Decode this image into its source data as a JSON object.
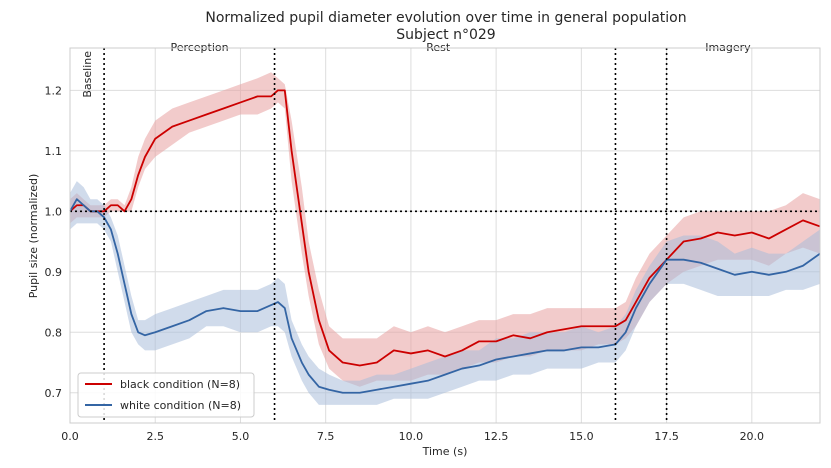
{
  "chart_data": {
    "type": "line",
    "title": "Normalized pupil diameter evolution over time in general population",
    "subtitle": "Subject n°029",
    "xlabel": "Time (s)",
    "ylabel": "Pupil size (normalized)",
    "xlim": [
      0,
      22
    ],
    "ylim": [
      0.65,
      1.27
    ],
    "x_ticks": [
      0,
      2.5,
      5,
      7.5,
      10,
      12.5,
      15,
      17.5,
      20
    ],
    "x_tick_labels": [
      "0.0",
      "2.5",
      "5.0",
      "7.5",
      "10.0",
      "12.5",
      "15.0",
      "17.5",
      "20.0"
    ],
    "y_ticks": [
      0.7,
      0.8,
      0.9,
      1.0,
      1.1,
      1.2
    ],
    "y_tick_labels": [
      "0.7",
      "0.8",
      "0.9",
      "1.0",
      "1.1",
      "1.2"
    ],
    "grid": true,
    "legend_position": "bottom-left",
    "reference_line_y": 1.0,
    "phase_boundaries_x": [
      1,
      6,
      16,
      17.5
    ],
    "phase_labels": [
      {
        "label": "Baseline",
        "x": 0.7,
        "rotated": true
      },
      {
        "label": "Perception",
        "x": 3.8,
        "rotated": false
      },
      {
        "label": "Rest",
        "x": 10.8,
        "rotated": false
      },
      {
        "label": "Imagery",
        "x": 19.3,
        "rotated": false
      }
    ],
    "series": [
      {
        "name": "black condition (N=8)",
        "color": "#cc0000",
        "band_color": "#e8a0a0",
        "x": [
          0,
          0.2,
          0.4,
          0.6,
          0.8,
          1.0,
          1.2,
          1.4,
          1.6,
          1.8,
          2.0,
          2.2,
          2.5,
          3.0,
          3.5,
          4.0,
          4.5,
          5.0,
          5.5,
          5.9,
          6.1,
          6.3,
          6.5,
          6.8,
          7.0,
          7.3,
          7.6,
          8.0,
          8.5,
          9.0,
          9.5,
          10.0,
          10.5,
          11.0,
          11.5,
          12.0,
          12.5,
          13.0,
          13.5,
          14.0,
          14.5,
          15.0,
          15.5,
          16.0,
          16.3,
          16.6,
          17.0,
          17.5,
          18.0,
          18.5,
          19.0,
          19.5,
          20.0,
          20.5,
          21.0,
          21.5,
          22.0
        ],
        "values": [
          1.0,
          1.01,
          1.01,
          1.0,
          1.0,
          1.0,
          1.01,
          1.01,
          1.0,
          1.02,
          1.06,
          1.09,
          1.12,
          1.14,
          1.15,
          1.16,
          1.17,
          1.18,
          1.19,
          1.19,
          1.2,
          1.2,
          1.1,
          0.98,
          0.9,
          0.82,
          0.77,
          0.75,
          0.745,
          0.75,
          0.77,
          0.765,
          0.77,
          0.76,
          0.77,
          0.785,
          0.785,
          0.795,
          0.79,
          0.8,
          0.805,
          0.81,
          0.81,
          0.81,
          0.82,
          0.85,
          0.89,
          0.92,
          0.95,
          0.955,
          0.965,
          0.96,
          0.965,
          0.955,
          0.97,
          0.985,
          0.975
        ],
        "lower": [
          0.98,
          0.99,
          0.99,
          0.99,
          0.99,
          0.99,
          1.0,
          1.0,
          1.0,
          1.0,
          1.04,
          1.07,
          1.09,
          1.11,
          1.13,
          1.14,
          1.15,
          1.16,
          1.16,
          1.17,
          1.18,
          1.17,
          1.05,
          0.93,
          0.86,
          0.78,
          0.74,
          0.72,
          0.71,
          0.72,
          0.72,
          0.72,
          0.73,
          0.73,
          0.74,
          0.75,
          0.75,
          0.76,
          0.76,
          0.77,
          0.77,
          0.77,
          0.78,
          0.78,
          0.79,
          0.81,
          0.85,
          0.88,
          0.9,
          0.91,
          0.92,
          0.92,
          0.92,
          0.91,
          0.93,
          0.94,
          0.93
        ],
        "upper": [
          1.02,
          1.03,
          1.02,
          1.01,
          1.01,
          1.01,
          1.02,
          1.02,
          1.01,
          1.04,
          1.09,
          1.12,
          1.15,
          1.17,
          1.18,
          1.19,
          1.2,
          1.21,
          1.22,
          1.23,
          1.22,
          1.21,
          1.15,
          1.04,
          0.95,
          0.87,
          0.81,
          0.79,
          0.79,
          0.79,
          0.81,
          0.8,
          0.81,
          0.8,
          0.81,
          0.82,
          0.82,
          0.83,
          0.83,
          0.84,
          0.84,
          0.84,
          0.84,
          0.84,
          0.85,
          0.89,
          0.93,
          0.96,
          0.99,
          1.0,
          1.0,
          1.0,
          1.0,
          1.0,
          1.01,
          1.03,
          1.02
        ]
      },
      {
        "name": "white condition (N=8)",
        "color": "#3465a4",
        "band_color": "#a9bedb",
        "x": [
          0,
          0.2,
          0.4,
          0.6,
          0.8,
          1.0,
          1.2,
          1.4,
          1.6,
          1.8,
          2.0,
          2.2,
          2.5,
          3.0,
          3.5,
          4.0,
          4.5,
          5.0,
          5.5,
          5.9,
          6.1,
          6.3,
          6.5,
          6.8,
          7.0,
          7.3,
          7.6,
          8.0,
          8.5,
          9.0,
          9.5,
          10.0,
          10.5,
          11.0,
          11.5,
          12.0,
          12.5,
          13.0,
          13.5,
          14.0,
          14.5,
          15.0,
          15.5,
          16.0,
          16.3,
          16.6,
          17.0,
          17.5,
          18.0,
          18.5,
          19.0,
          19.5,
          20.0,
          20.5,
          21.0,
          21.5,
          22.0
        ],
        "values": [
          1.0,
          1.02,
          1.01,
          1.0,
          1.0,
          0.99,
          0.97,
          0.93,
          0.88,
          0.83,
          0.8,
          0.795,
          0.8,
          0.81,
          0.82,
          0.835,
          0.84,
          0.835,
          0.835,
          0.845,
          0.85,
          0.84,
          0.79,
          0.75,
          0.73,
          0.71,
          0.705,
          0.7,
          0.7,
          0.705,
          0.71,
          0.715,
          0.72,
          0.73,
          0.74,
          0.745,
          0.755,
          0.76,
          0.765,
          0.77,
          0.77,
          0.775,
          0.775,
          0.78,
          0.8,
          0.84,
          0.88,
          0.92,
          0.92,
          0.915,
          0.905,
          0.895,
          0.9,
          0.895,
          0.9,
          0.91,
          0.93
        ],
        "lower": [
          0.97,
          0.98,
          0.98,
          0.98,
          0.98,
          0.97,
          0.95,
          0.9,
          0.85,
          0.8,
          0.78,
          0.77,
          0.77,
          0.78,
          0.79,
          0.81,
          0.81,
          0.8,
          0.8,
          0.81,
          0.81,
          0.8,
          0.76,
          0.72,
          0.7,
          0.68,
          0.68,
          0.68,
          0.68,
          0.68,
          0.69,
          0.69,
          0.69,
          0.7,
          0.71,
          0.72,
          0.72,
          0.73,
          0.73,
          0.74,
          0.74,
          0.74,
          0.75,
          0.75,
          0.77,
          0.81,
          0.85,
          0.88,
          0.88,
          0.87,
          0.86,
          0.86,
          0.86,
          0.86,
          0.87,
          0.87,
          0.88
        ],
        "upper": [
          1.03,
          1.05,
          1.04,
          1.02,
          1.02,
          1.01,
          0.99,
          0.96,
          0.91,
          0.86,
          0.82,
          0.82,
          0.83,
          0.84,
          0.85,
          0.86,
          0.87,
          0.87,
          0.87,
          0.88,
          0.89,
          0.88,
          0.82,
          0.78,
          0.76,
          0.74,
          0.73,
          0.72,
          0.72,
          0.73,
          0.73,
          0.74,
          0.75,
          0.76,
          0.77,
          0.77,
          0.79,
          0.79,
          0.8,
          0.8,
          0.8,
          0.81,
          0.8,
          0.81,
          0.83,
          0.87,
          0.91,
          0.95,
          0.96,
          0.96,
          0.95,
          0.93,
          0.94,
          0.93,
          0.93,
          0.95,
          0.97
        ]
      }
    ]
  }
}
